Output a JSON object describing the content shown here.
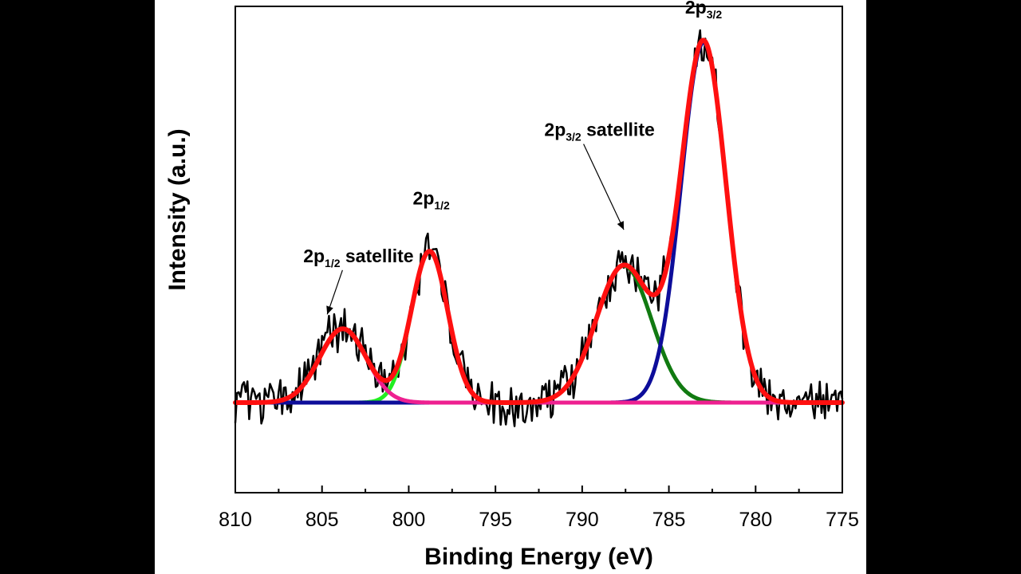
{
  "chart_data": {
    "type": "line",
    "title": "",
    "xlabel": "Binding Energy (eV)",
    "ylabel": "Intensity (a.u.)",
    "x_axis": {
      "reversed": true,
      "min": 775,
      "max": 810,
      "ticks": [
        810,
        805,
        800,
        795,
        790,
        785,
        780,
        775
      ]
    },
    "y_axis": {
      "min": -0.25,
      "max": 1.1,
      "ticks_shown": false
    },
    "grid": false,
    "legend": "none",
    "baseline": 0,
    "series": [
      {
        "name": "Experimental",
        "color": "#000000",
        "role": "raw",
        "noise_amp": 0.055
      },
      {
        "name": "2p3/2",
        "color": "#0d0d9a",
        "role": "component",
        "peak_center": 783.0,
        "peak_height": 1.0,
        "peak_sigma": 1.3
      },
      {
        "name": "2p3/2 satellite",
        "color": "#117a11",
        "role": "component",
        "peak_center": 787.6,
        "peak_height": 0.38,
        "peak_sigma": 1.6
      },
      {
        "name": "2p1/2",
        "color": "#22ee22",
        "role": "component",
        "peak_center": 798.8,
        "peak_height": 0.42,
        "peak_sigma": 1.05
      },
      {
        "name": "2p1/2 satellite",
        "color": "#ee2090",
        "role": "component",
        "peak_center": 803.8,
        "peak_height": 0.205,
        "peak_sigma": 1.35
      },
      {
        "name": "Envelope",
        "color": "#ff1010",
        "role": "fit"
      }
    ],
    "annotations": [
      {
        "main": "2p",
        "sub": "3/2",
        "rest": "",
        "x": 783.0,
        "y": 1.08,
        "arrow": false
      },
      {
        "main": "2p",
        "sub": "3/2",
        "rest": " satellite",
        "x": 789.0,
        "y": 0.74,
        "arrow": true,
        "arrow_to_x": 787.6,
        "arrow_to_y": 0.48
      },
      {
        "main": "2p",
        "sub": "1/2",
        "rest": "",
        "x": 798.7,
        "y": 0.55,
        "arrow": false
      },
      {
        "main": "2p",
        "sub": "1/2",
        "rest": " satellite",
        "x": 802.9,
        "y": 0.39,
        "arrow": true,
        "arrow_to_x": 804.7,
        "arrow_to_y": 0.245
      }
    ]
  }
}
